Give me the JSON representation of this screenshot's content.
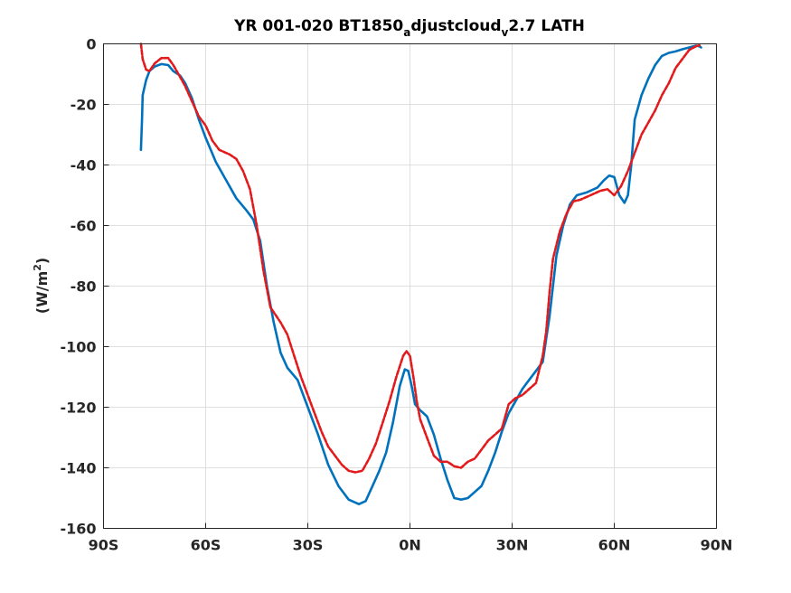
{
  "chart_data": {
    "type": "line",
    "title_parts": {
      "a": "YR 001-020 BT1850",
      "b": "a",
      "c": "djustcloud",
      "d": "v",
      "e": "2.7 LATH"
    },
    "ylabel_parts": {
      "main": "(W/m",
      "sup": "2",
      "close": ")"
    },
    "xlabel": "",
    "xlim": [
      -90,
      90
    ],
    "ylim": [
      -160,
      0
    ],
    "grid": true,
    "x_ticks": [
      {
        "value": -90,
        "label": "90S"
      },
      {
        "value": -60,
        "label": "60S"
      },
      {
        "value": -30,
        "label": "30S"
      },
      {
        "value": 0,
        "label": "0N"
      },
      {
        "value": 30,
        "label": "30N"
      },
      {
        "value": 60,
        "label": "60N"
      },
      {
        "value": 90,
        "label": "90N"
      }
    ],
    "y_ticks": [
      {
        "value": 0,
        "label": "0"
      },
      {
        "value": -20,
        "label": "-20"
      },
      {
        "value": -40,
        "label": "-40"
      },
      {
        "value": -60,
        "label": "-60"
      },
      {
        "value": -80,
        "label": "-80"
      },
      {
        "value": -100,
        "label": "-100"
      },
      {
        "value": -120,
        "label": "-120"
      },
      {
        "value": -140,
        "label": "-140"
      },
      {
        "value": -160,
        "label": "-160"
      }
    ],
    "series": [
      {
        "color": "#0072bd",
        "style": "solid",
        "points": [
          [
            -79,
            -35
          ],
          [
            -78.7,
            -25
          ],
          [
            -78.5,
            -17
          ],
          [
            -77.5,
            -12
          ],
          [
            -76.5,
            -9
          ],
          [
            -75,
            -7.5
          ],
          [
            -73,
            -6.7
          ],
          [
            -71,
            -7
          ],
          [
            -69.5,
            -9
          ],
          [
            -67.5,
            -10.5
          ],
          [
            -66,
            -13
          ],
          [
            -64,
            -18
          ],
          [
            -62,
            -25
          ],
          [
            -60,
            -31
          ],
          [
            -57,
            -39
          ],
          [
            -54,
            -45
          ],
          [
            -51,
            -51
          ],
          [
            -48,
            -55
          ],
          [
            -46,
            -58
          ],
          [
            -44,
            -65
          ],
          [
            -42,
            -80
          ],
          [
            -40,
            -92
          ],
          [
            -38,
            -102
          ],
          [
            -36,
            -107
          ],
          [
            -33,
            -111
          ],
          [
            -30,
            -120
          ],
          [
            -27,
            -129
          ],
          [
            -24,
            -139
          ],
          [
            -21,
            -146
          ],
          [
            -18,
            -150.5
          ],
          [
            -15,
            -152
          ],
          [
            -13,
            -151
          ],
          [
            -11,
            -146
          ],
          [
            -9,
            -141
          ],
          [
            -7,
            -135
          ],
          [
            -5,
            -125
          ],
          [
            -3,
            -113
          ],
          [
            -1.5,
            -107.5
          ],
          [
            -0.5,
            -108
          ],
          [
            0.5,
            -113
          ],
          [
            1.5,
            -119
          ],
          [
            3,
            -121
          ],
          [
            5,
            -123
          ],
          [
            7,
            -129
          ],
          [
            9,
            -137
          ],
          [
            11,
            -144
          ],
          [
            13,
            -150
          ],
          [
            15,
            -150.5
          ],
          [
            17,
            -150
          ],
          [
            19,
            -148
          ],
          [
            21,
            -146
          ],
          [
            23,
            -141
          ],
          [
            25,
            -135
          ],
          [
            27,
            -128
          ],
          [
            29,
            -122
          ],
          [
            31,
            -118
          ],
          [
            33,
            -114
          ],
          [
            35,
            -111
          ],
          [
            37,
            -108
          ],
          [
            39,
            -105
          ],
          [
            41,
            -90
          ],
          [
            43,
            -70
          ],
          [
            45,
            -60
          ],
          [
            47,
            -53
          ],
          [
            49,
            -50
          ],
          [
            52,
            -49
          ],
          [
            55,
            -47.5
          ],
          [
            57,
            -45
          ],
          [
            58.5,
            -43.5
          ],
          [
            60,
            -44
          ],
          [
            61.5,
            -50
          ],
          [
            63,
            -52.5
          ],
          [
            64,
            -50
          ],
          [
            65,
            -40
          ],
          [
            66,
            -25
          ],
          [
            68,
            -17
          ],
          [
            70,
            -11.5
          ],
          [
            72,
            -7
          ],
          [
            74,
            -4
          ],
          [
            76,
            -3
          ],
          [
            78,
            -2.5
          ],
          [
            80,
            -1.8
          ],
          [
            82,
            -1.2
          ],
          [
            84,
            -0.6
          ],
          [
            85,
            -0.8
          ],
          [
            85.5,
            -1.2
          ]
        ]
      },
      {
        "color": "#e31a1c",
        "style": "dashed",
        "points": [
          [
            -79,
            0
          ],
          [
            -78.5,
            -5
          ],
          [
            -77.5,
            -8.5
          ],
          [
            -76.5,
            -9
          ],
          [
            -75,
            -6.5
          ],
          [
            -73,
            -4.7
          ],
          [
            -71,
            -4.7
          ],
          [
            -69.5,
            -7
          ],
          [
            -67.5,
            -11
          ],
          [
            -66,
            -14
          ],
          [
            -64,
            -19
          ],
          [
            -62,
            -24
          ],
          [
            -60,
            -27
          ],
          [
            -58,
            -32
          ],
          [
            -56,
            -35
          ],
          [
            -53,
            -36.5
          ],
          [
            -51,
            -38
          ],
          [
            -49,
            -42
          ],
          [
            -47,
            -48
          ],
          [
            -45,
            -60
          ],
          [
            -43,
            -75
          ],
          [
            -41,
            -87
          ],
          [
            -38,
            -92
          ],
          [
            -36,
            -96
          ],
          [
            -34,
            -103
          ],
          [
            -32,
            -110
          ],
          [
            -30,
            -116
          ],
          [
            -28,
            -122
          ],
          [
            -26,
            -128
          ],
          [
            -24,
            -133
          ],
          [
            -22,
            -136
          ],
          [
            -20,
            -139
          ],
          [
            -18,
            -141
          ],
          [
            -16,
            -141.5
          ],
          [
            -14,
            -141
          ],
          [
            -12,
            -137
          ],
          [
            -10,
            -132
          ],
          [
            -8,
            -125
          ],
          [
            -6,
            -118
          ],
          [
            -4,
            -110
          ],
          [
            -2,
            -103
          ],
          [
            -1,
            -101.5
          ],
          [
            0,
            -103
          ],
          [
            1,
            -110
          ],
          [
            2,
            -118
          ],
          [
            3,
            -124
          ],
          [
            5,
            -130
          ],
          [
            7,
            -136
          ],
          [
            9,
            -138
          ],
          [
            11,
            -138
          ],
          [
            13,
            -139.5
          ],
          [
            15,
            -140
          ],
          [
            17,
            -138
          ],
          [
            19,
            -137
          ],
          [
            21,
            -134
          ],
          [
            23,
            -131
          ],
          [
            25,
            -129
          ],
          [
            27,
            -127
          ],
          [
            29,
            -119
          ],
          [
            31,
            -117
          ],
          [
            33,
            -116
          ],
          [
            35,
            -114
          ],
          [
            37,
            -112
          ],
          [
            39,
            -103
          ],
          [
            40,
            -95
          ],
          [
            41,
            -82
          ],
          [
            42,
            -71
          ],
          [
            44,
            -62
          ],
          [
            46,
            -56
          ],
          [
            48,
            -52
          ],
          [
            50,
            -51.5
          ],
          [
            52,
            -50.5
          ],
          [
            54,
            -49.5
          ],
          [
            56,
            -48.5
          ],
          [
            58,
            -48
          ],
          [
            60,
            -50
          ],
          [
            62,
            -47
          ],
          [
            64,
            -42
          ],
          [
            66,
            -36
          ],
          [
            68,
            -30
          ],
          [
            70,
            -26
          ],
          [
            72,
            -22
          ],
          [
            74,
            -17
          ],
          [
            76,
            -13
          ],
          [
            78,
            -8
          ],
          [
            80,
            -5
          ],
          [
            82,
            -2
          ],
          [
            84,
            -0.8
          ],
          [
            85,
            -0.5
          ]
        ]
      }
    ]
  }
}
